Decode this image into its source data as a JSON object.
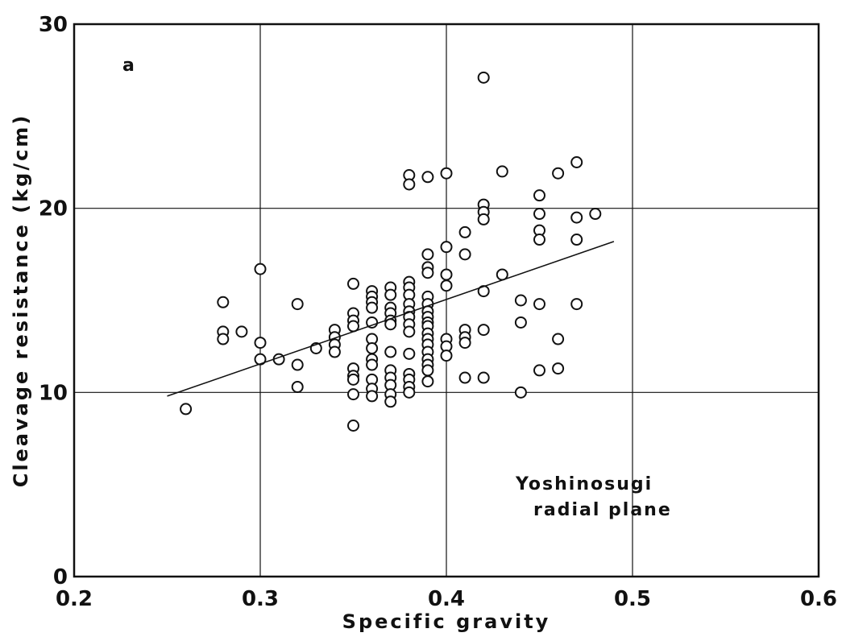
{
  "chart_data": {
    "type": "scatter",
    "xlabel": "Specific gravity",
    "ylabel": "Cleavage resistance (kg/cm)",
    "annotations": [
      "a",
      "Yoshinosugi",
      "radial plane"
    ],
    "xlim": [
      0.2,
      0.6
    ],
    "xticks": [
      0.2,
      0.3,
      0.4,
      0.5,
      0.6
    ],
    "ylim": [
      0,
      30
    ],
    "yticks": [
      0,
      10,
      20,
      30
    ],
    "grid": true,
    "color": "#111111",
    "x": [
      0.26,
      0.28,
      0.28,
      0.28,
      0.29,
      0.3,
      0.3,
      0.3,
      0.31,
      0.32,
      0.32,
      0.32,
      0.33,
      0.34,
      0.34,
      0.34,
      0.34,
      0.35,
      0.35,
      0.35,
      0.35,
      0.35,
      0.35,
      0.35,
      0.35,
      0.35,
      0.36,
      0.36,
      0.36,
      0.36,
      0.36,
      0.36,
      0.36,
      0.36,
      0.36,
      0.36,
      0.36,
      0.36,
      0.37,
      0.37,
      0.37,
      0.37,
      0.37,
      0.37,
      0.37,
      0.37,
      0.37,
      0.37,
      0.37,
      0.37,
      0.38,
      0.38,
      0.38,
      0.38,
      0.38,
      0.38,
      0.38,
      0.38,
      0.38,
      0.38,
      0.38,
      0.38,
      0.38,
      0.38,
      0.38,
      0.39,
      0.39,
      0.39,
      0.39,
      0.39,
      0.39,
      0.39,
      0.39,
      0.39,
      0.39,
      0.39,
      0.39,
      0.39,
      0.39,
      0.39,
      0.39,
      0.39,
      0.39,
      0.4,
      0.4,
      0.4,
      0.4,
      0.4,
      0.4,
      0.4,
      0.41,
      0.41,
      0.41,
      0.41,
      0.41,
      0.41,
      0.42,
      0.42,
      0.42,
      0.42,
      0.42,
      0.42,
      0.42,
      0.43,
      0.43,
      0.44,
      0.44,
      0.44,
      0.45,
      0.45,
      0.45,
      0.45,
      0.45,
      0.45,
      0.46,
      0.46,
      0.46,
      0.47,
      0.47,
      0.47,
      0.47,
      0.48
    ],
    "y": [
      9.1,
      14.9,
      13.3,
      12.9,
      13.3,
      16.7,
      12.7,
      11.8,
      11.8,
      14.8,
      11.5,
      10.3,
      12.4,
      13.4,
      13.0,
      12.6,
      12.2,
      15.9,
      14.3,
      13.9,
      13.6,
      11.3,
      10.9,
      10.7,
      9.9,
      8.2,
      15.5,
      15.2,
      14.9,
      14.6,
      13.8,
      12.9,
      12.4,
      11.8,
      11.5,
      10.7,
      10.2,
      9.8,
      15.7,
      15.3,
      14.6,
      14.3,
      13.9,
      13.7,
      12.2,
      11.2,
      10.8,
      10.4,
      9.9,
      9.5,
      21.8,
      21.3,
      16.0,
      15.7,
      15.3,
      14.8,
      14.4,
      14.1,
      13.7,
      13.3,
      12.1,
      11.0,
      10.7,
      10.3,
      10.0,
      21.7,
      17.5,
      16.8,
      16.5,
      15.2,
      14.8,
      14.4,
      14.1,
      13.8,
      13.6,
      13.2,
      12.9,
      12.6,
      12.2,
      11.8,
      11.5,
      11.2,
      10.6,
      21.9,
      17.9,
      16.4,
      15.8,
      12.9,
      12.5,
      12.0,
      18.7,
      17.5,
      13.4,
      13.0,
      12.7,
      10.8,
      27.1,
      20.2,
      19.8,
      19.4,
      15.5,
      13.4,
      10.8,
      22.0,
      16.4,
      15.0,
      13.8,
      10.0,
      20.7,
      19.7,
      18.8,
      18.3,
      14.8,
      11.2,
      21.9,
      12.9,
      11.3,
      22.5,
      19.5,
      18.3,
      14.8,
      19.7
    ],
    "trendline": {
      "x": [
        0.25,
        0.49
      ],
      "y": [
        9.8,
        18.2
      ]
    }
  }
}
